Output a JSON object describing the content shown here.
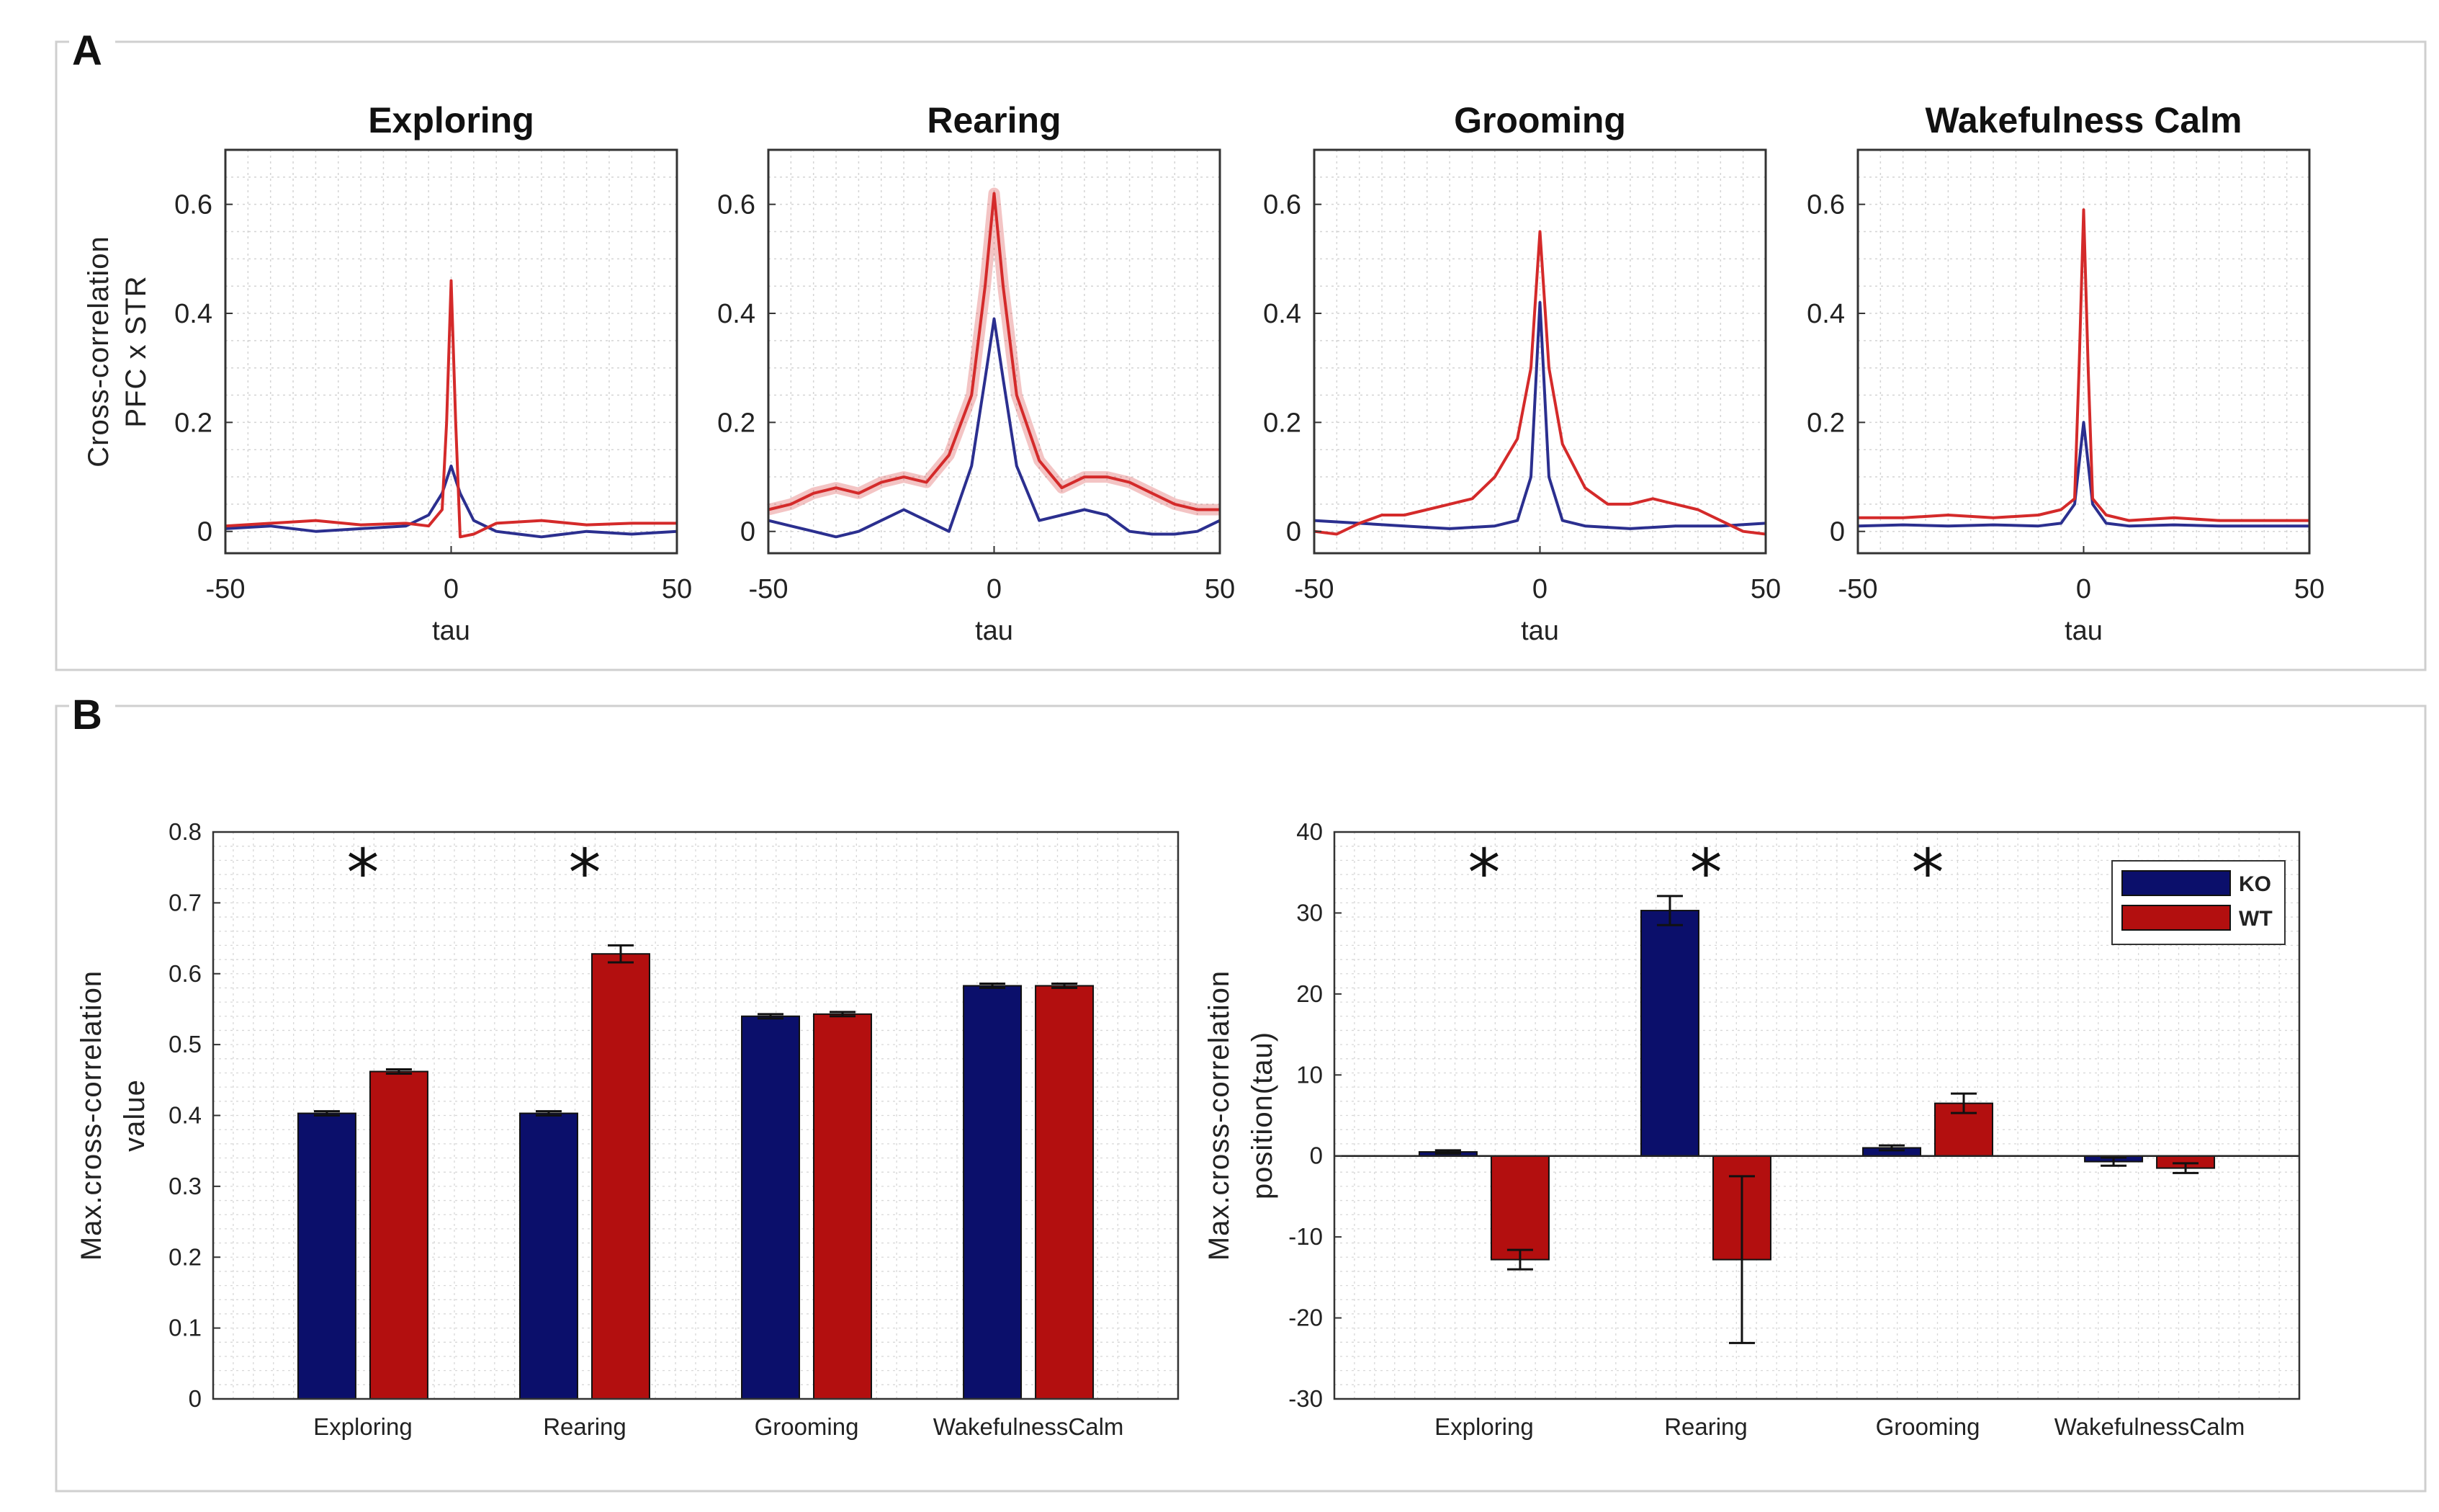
{
  "figure": {
    "panel_a_label": "A",
    "panel_b_label": "B"
  },
  "colors": {
    "ko": "#2b2f8f",
    "wt": "#d42a2a",
    "ko_bar": "#0b0f6b",
    "wt_bar": "#b30f0f"
  },
  "chart_data": [
    {
      "id": "xcorr-exploring",
      "type": "line",
      "title": "Exploring",
      "xlabel": "tau",
      "ylabel_lines": [
        "Cross-correlation",
        "PFC x STR"
      ],
      "xlim": [
        -50,
        50
      ],
      "ylim": [
        -0.04,
        0.7
      ],
      "xticks": [
        "-50",
        "0",
        "50"
      ],
      "yticks": [
        "0",
        "0.2",
        "0.4",
        "0.6"
      ],
      "series": [
        {
          "name": "WT",
          "x": [
            -50,
            -40,
            -30,
            -20,
            -10,
            -5,
            -2,
            -1,
            0,
            1,
            2,
            5,
            10,
            20,
            30,
            40,
            50
          ],
          "y": [
            0.01,
            0.015,
            0.02,
            0.012,
            0.015,
            0.01,
            0.04,
            0.2,
            0.46,
            0.2,
            -0.01,
            -0.005,
            0.015,
            0.02,
            0.012,
            0.015,
            0.015
          ]
        },
        {
          "name": "KO",
          "x": [
            -50,
            -40,
            -30,
            -20,
            -10,
            -5,
            -2,
            0,
            2,
            5,
            10,
            15,
            20,
            30,
            40,
            50
          ],
          "y": [
            0.005,
            0.01,
            0.0,
            0.005,
            0.01,
            0.03,
            0.07,
            0.12,
            0.07,
            0.02,
            0.0,
            -0.005,
            -0.01,
            0.0,
            -0.005,
            0.0
          ]
        }
      ]
    },
    {
      "id": "xcorr-rearing",
      "type": "line",
      "title": "Rearing",
      "xlabel": "tau",
      "xlim": [
        -50,
        50
      ],
      "ylim": [
        -0.04,
        0.7
      ],
      "xticks": [
        "-50",
        "0",
        "50"
      ],
      "yticks": [
        "0",
        "0.2",
        "0.4",
        "0.6"
      ],
      "series": [
        {
          "name": "WT",
          "x": [
            -50,
            -45,
            -40,
            -35,
            -30,
            -25,
            -20,
            -15,
            -10,
            -5,
            -2,
            0,
            2,
            5,
            10,
            15,
            20,
            25,
            30,
            35,
            40,
            45,
            50
          ],
          "y": [
            0.04,
            0.05,
            0.07,
            0.08,
            0.07,
            0.09,
            0.1,
            0.09,
            0.14,
            0.25,
            0.45,
            0.62,
            0.45,
            0.25,
            0.13,
            0.08,
            0.1,
            0.1,
            0.09,
            0.07,
            0.05,
            0.04,
            0.04
          ]
        },
        {
          "name": "KO",
          "x": [
            -50,
            -45,
            -40,
            -35,
            -30,
            -25,
            -20,
            -15,
            -10,
            -5,
            -2,
            0,
            2,
            5,
            10,
            15,
            20,
            25,
            30,
            35,
            40,
            45,
            50
          ],
          "y": [
            0.02,
            0.01,
            0.0,
            -0.01,
            0.0,
            0.02,
            0.04,
            0.02,
            0.0,
            0.12,
            0.28,
            0.39,
            0.28,
            0.12,
            0.02,
            0.03,
            0.04,
            0.03,
            0.0,
            -0.005,
            -0.005,
            0.0,
            0.02
          ]
        }
      ]
    },
    {
      "id": "xcorr-grooming",
      "type": "line",
      "title": "Grooming",
      "xlabel": "tau",
      "xlim": [
        -50,
        50
      ],
      "ylim": [
        -0.04,
        0.7
      ],
      "xticks": [
        "-50",
        "0",
        "50"
      ],
      "yticks": [
        "0",
        "0.2",
        "0.4",
        "0.6"
      ],
      "series": [
        {
          "name": "WT",
          "x": [
            -50,
            -45,
            -40,
            -35,
            -30,
            -25,
            -20,
            -15,
            -10,
            -5,
            -2,
            0,
            2,
            5,
            10,
            15,
            20,
            25,
            30,
            35,
            40,
            45,
            50
          ],
          "y": [
            0.0,
            -0.005,
            0.015,
            0.03,
            0.03,
            0.04,
            0.05,
            0.06,
            0.1,
            0.17,
            0.3,
            0.55,
            0.3,
            0.16,
            0.08,
            0.05,
            0.05,
            0.06,
            0.05,
            0.04,
            0.02,
            0.0,
            -0.005
          ]
        },
        {
          "name": "KO",
          "x": [
            -50,
            -40,
            -30,
            -20,
            -10,
            -5,
            -2,
            0,
            2,
            5,
            10,
            20,
            30,
            40,
            50
          ],
          "y": [
            0.02,
            0.015,
            0.01,
            0.005,
            0.01,
            0.02,
            0.1,
            0.42,
            0.1,
            0.02,
            0.01,
            0.005,
            0.01,
            0.01,
            0.015
          ]
        }
      ]
    },
    {
      "id": "xcorr-wakefulness",
      "type": "line",
      "title": "Wakefulness Calm",
      "xlabel": "tau",
      "xlim": [
        -50,
        50
      ],
      "ylim": [
        -0.04,
        0.7
      ],
      "xticks": [
        "-50",
        "0",
        "50"
      ],
      "yticks": [
        "0",
        "0.2",
        "0.4",
        "0.6"
      ],
      "series": [
        {
          "name": "WT",
          "x": [
            -50,
            -40,
            -30,
            -20,
            -10,
            -5,
            -2,
            -1,
            0,
            1,
            2,
            5,
            10,
            20,
            30,
            40,
            50
          ],
          "y": [
            0.025,
            0.025,
            0.03,
            0.025,
            0.03,
            0.04,
            0.06,
            0.3,
            0.59,
            0.3,
            0.06,
            0.03,
            0.02,
            0.025,
            0.02,
            0.02,
            0.02
          ]
        },
        {
          "name": "KO",
          "x": [
            -50,
            -40,
            -30,
            -20,
            -10,
            -5,
            -2,
            0,
            2,
            5,
            10,
            20,
            30,
            40,
            50
          ],
          "y": [
            0.01,
            0.012,
            0.01,
            0.012,
            0.01,
            0.015,
            0.05,
            0.2,
            0.05,
            0.015,
            0.01,
            0.012,
            0.01,
            0.01,
            0.01
          ]
        }
      ]
    },
    {
      "id": "max-value-bars",
      "type": "bar",
      "ylabel_lines": [
        "Max.cross-correlation",
        "value"
      ],
      "categories": [
        "Exploring",
        "Rearing",
        "Grooming",
        "WakefulnessCalm"
      ],
      "ylim": [
        0,
        0.8
      ],
      "yticks": [
        "0",
        "0.1",
        "0.2",
        "0.3",
        "0.4",
        "0.5",
        "0.6",
        "0.7",
        "0.8"
      ],
      "series": [
        {
          "name": "KO",
          "values": [
            0.403,
            0.403,
            0.54,
            0.583
          ],
          "errors": [
            0.003,
            0.003,
            0.003,
            0.003
          ]
        },
        {
          "name": "WT",
          "values": [
            0.462,
            0.628,
            0.543,
            0.583
          ],
          "errors": [
            0.003,
            0.012,
            0.003,
            0.003
          ]
        }
      ],
      "significance": [
        "*",
        "*",
        "",
        ""
      ]
    },
    {
      "id": "max-position-bars",
      "type": "bar",
      "ylabel_lines": [
        "Max.cross-correlation",
        "position(tau)"
      ],
      "categories": [
        "Exploring",
        "Rearing",
        "Grooming",
        "WakefulnessCalm"
      ],
      "ylim": [
        -30,
        40
      ],
      "yticks": [
        "-30",
        "-20",
        "-10",
        "0",
        "10",
        "20",
        "30",
        "40"
      ],
      "series": [
        {
          "name": "KO",
          "values": [
            0.5,
            30.3,
            1.0,
            -0.7
          ],
          "errors": [
            0.2,
            1.8,
            0.3,
            0.5
          ]
        },
        {
          "name": "WT",
          "values": [
            -12.8,
            -12.8,
            6.5,
            -1.5
          ],
          "errors": [
            1.2,
            10.3,
            1.2,
            0.6
          ]
        }
      ],
      "significance": [
        "*",
        "*",
        "*",
        ""
      ],
      "legend": [
        "KO",
        "WT"
      ],
      "legend_position": "top-right"
    }
  ]
}
